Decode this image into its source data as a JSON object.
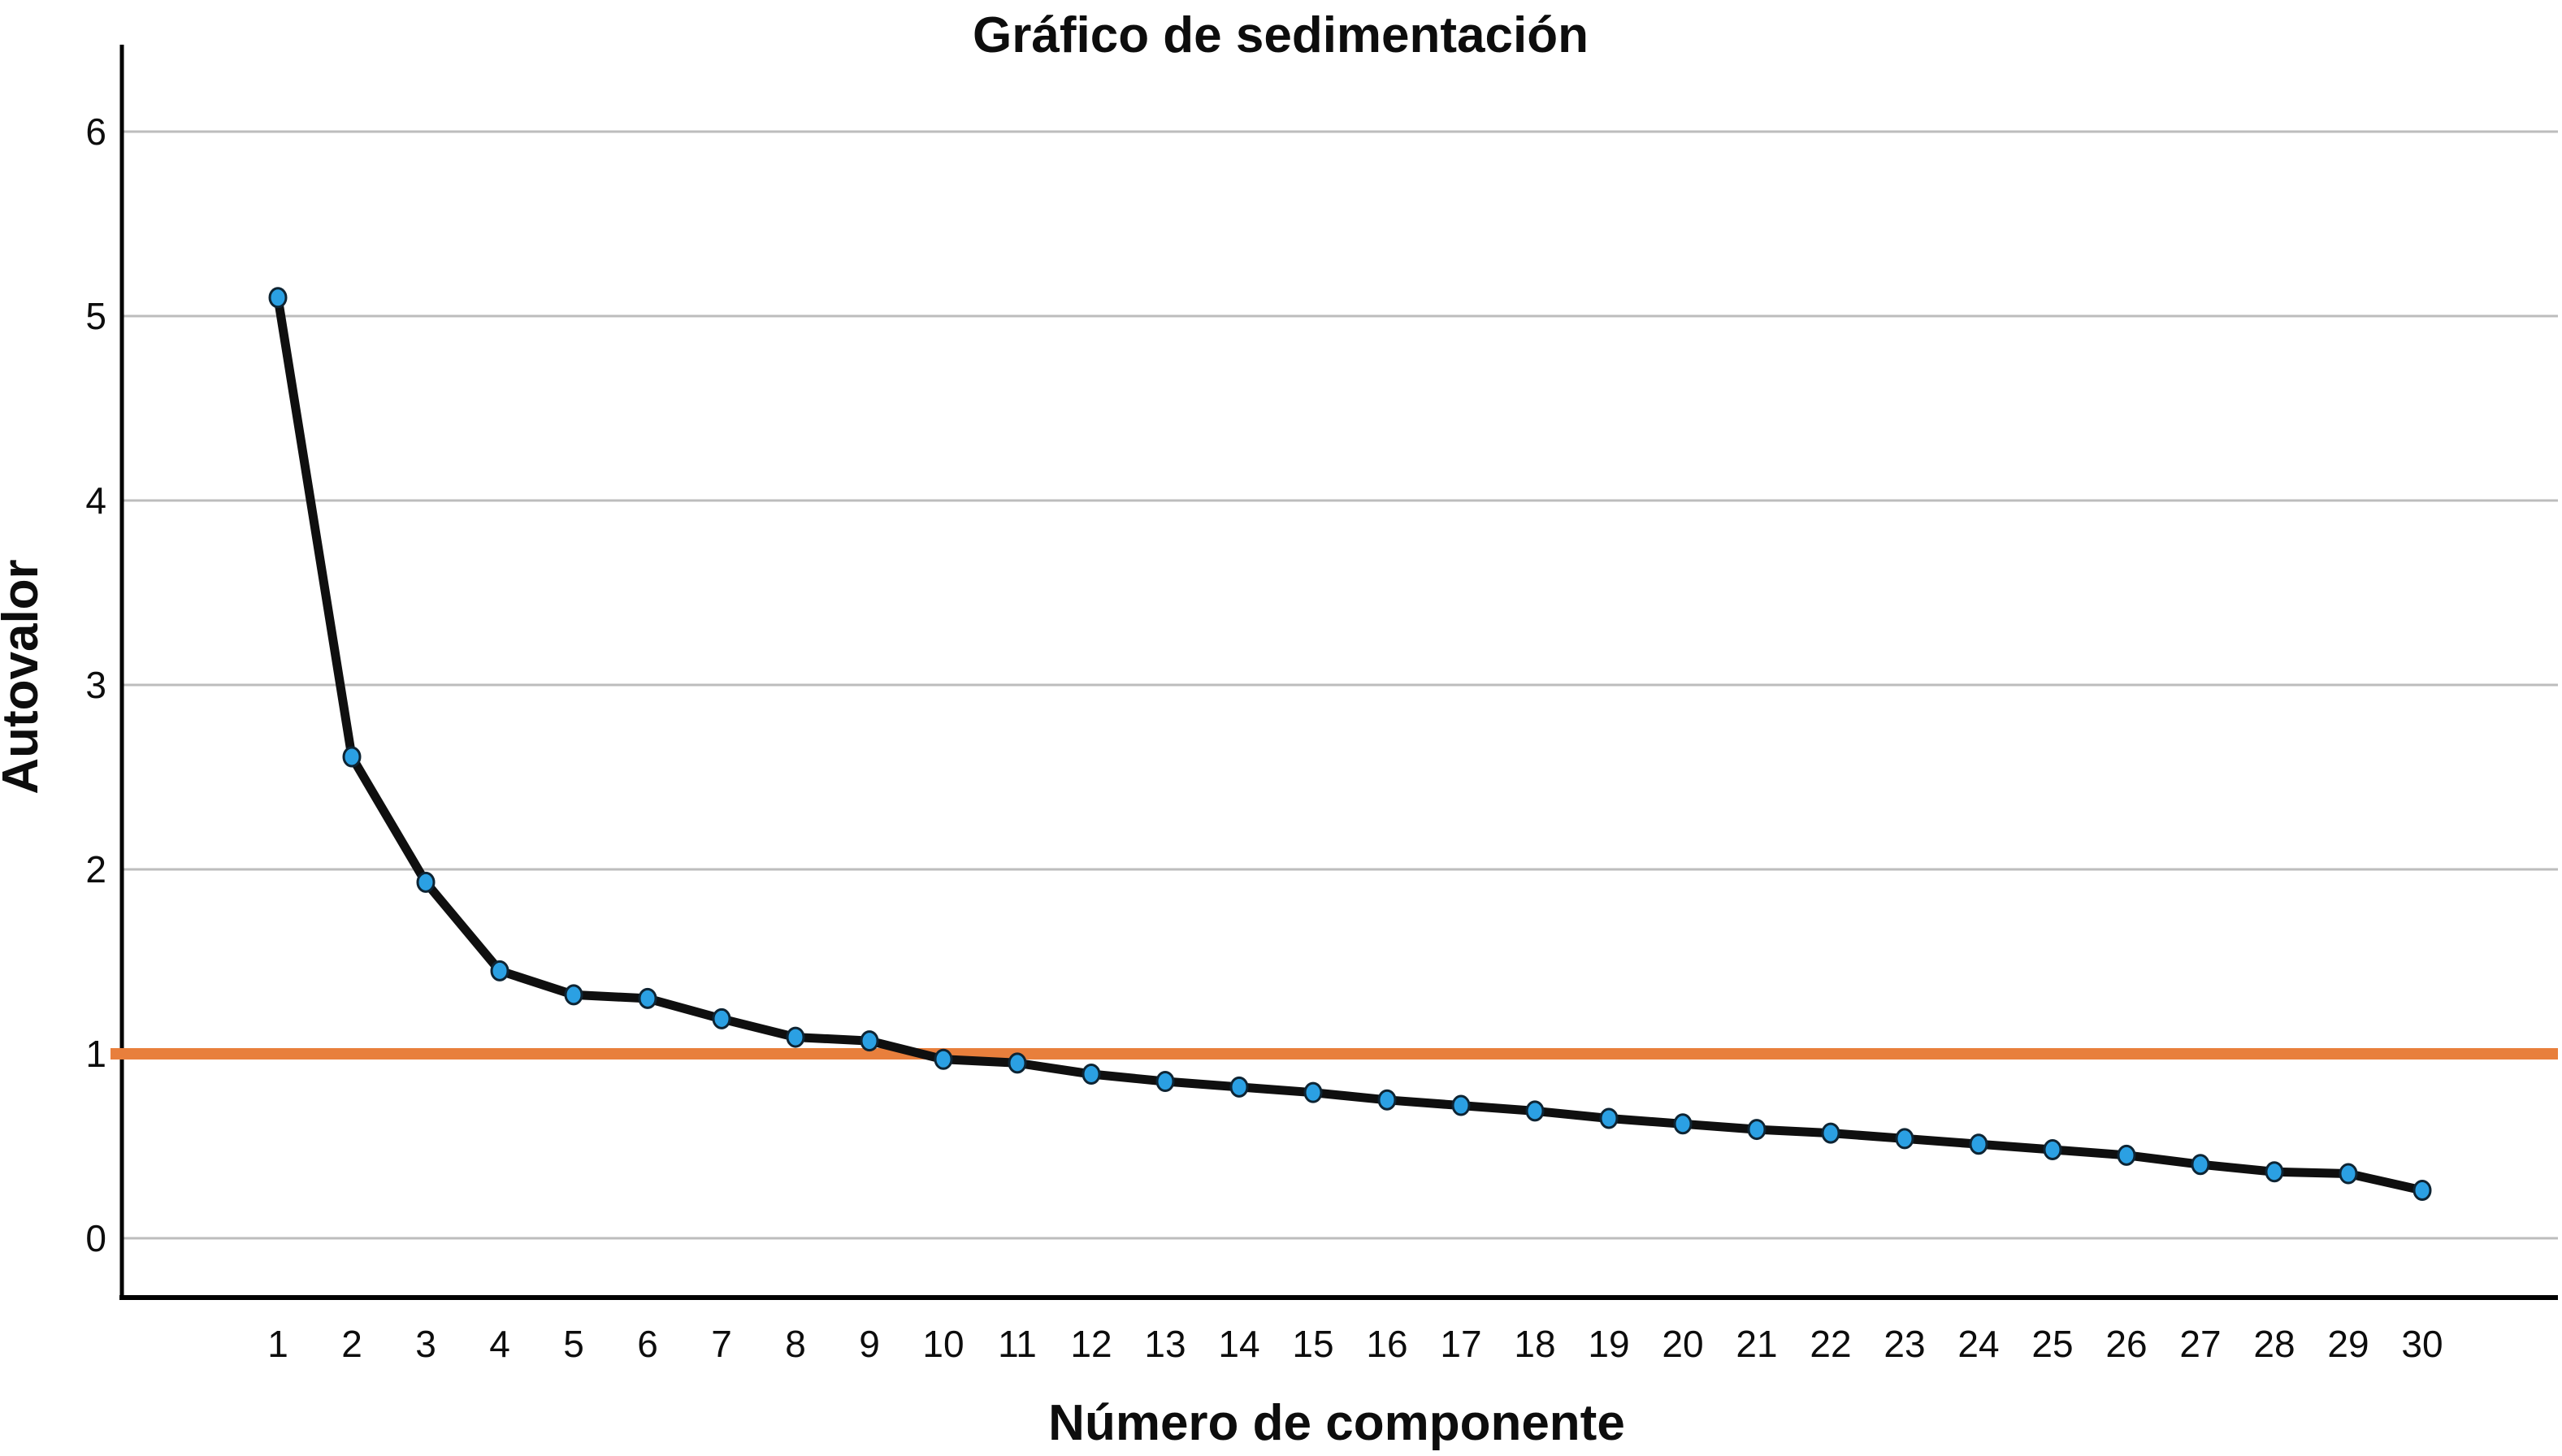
{
  "chart_data": {
    "type": "line",
    "title": "Gráfico de sedimentación",
    "xlabel": "Número de componente",
    "ylabel": "Autovalor",
    "x": [
      1,
      2,
      3,
      4,
      5,
      6,
      7,
      8,
      9,
      10,
      11,
      12,
      13,
      14,
      15,
      16,
      17,
      18,
      19,
      20,
      21,
      22,
      23,
      24,
      25,
      26,
      27,
      28,
      29,
      30
    ],
    "series": [
      {
        "name": "Autovalor",
        "values": [
          5.1,
          2.61,
          1.93,
          1.45,
          1.32,
          1.3,
          1.19,
          1.09,
          1.07,
          0.97,
          0.95,
          0.89,
          0.85,
          0.82,
          0.79,
          0.75,
          0.72,
          0.69,
          0.65,
          0.62,
          0.59,
          0.57,
          0.54,
          0.51,
          0.48,
          0.45,
          0.4,
          0.36,
          0.35,
          0.26
        ]
      }
    ],
    "reference_line": {
      "value": 1.0,
      "color": "#E87F3C"
    },
    "yticks": [
      0,
      1,
      2,
      3,
      4,
      5,
      6
    ],
    "ylim": [
      -0.33,
      6.44
    ],
    "grid": "horizontal",
    "legend_position": "none",
    "marker": "ellipse",
    "colors": {
      "line": "#0f0f0f",
      "marker_fill": "#2BA0E3",
      "marker_stroke": "#0e2433",
      "gridline": "#bdbdbd",
      "axis": "#000000",
      "text": "#0d0d0d",
      "background": "#ffffff"
    }
  }
}
